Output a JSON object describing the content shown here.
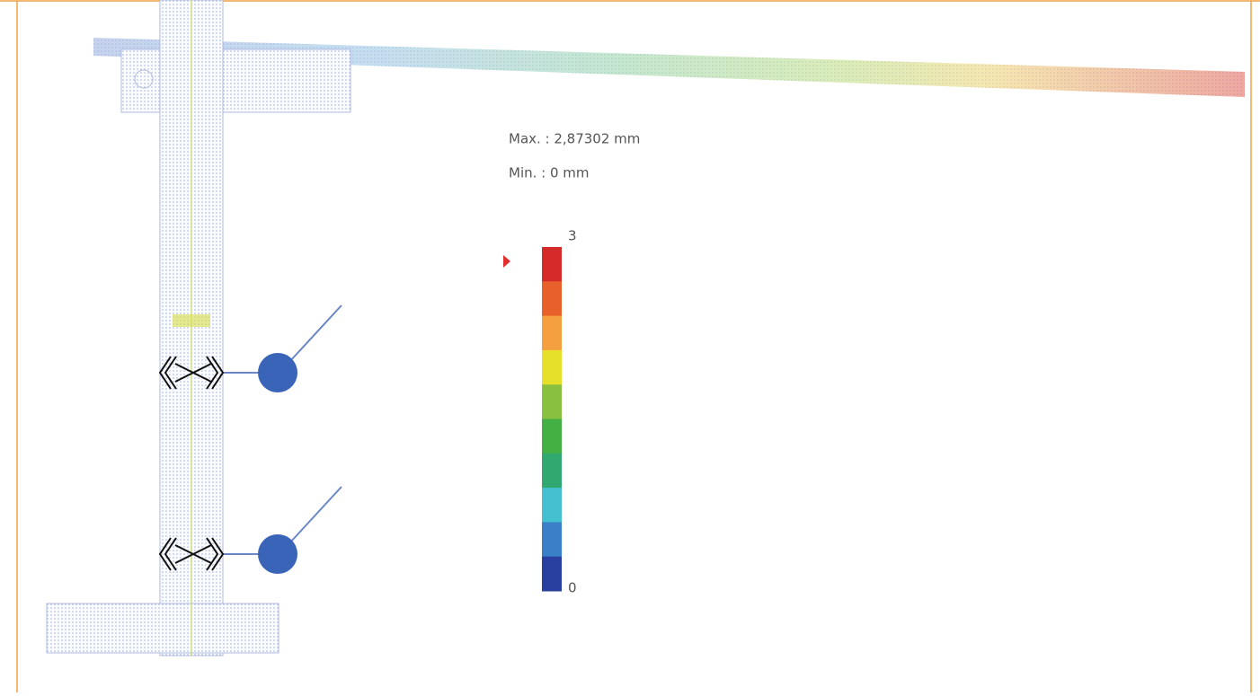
{
  "result": {
    "max_label": "Max. : 2,87302 mm",
    "min_label": "Min.  : 0 mm"
  },
  "legend": {
    "top_label": "3",
    "bottom_label": "0",
    "colors": [
      "#d42a2a",
      "#e8602a",
      "#f5a040",
      "#e6e02a",
      "#8ac040",
      "#44b044",
      "#30a870",
      "#44c0d0",
      "#3a80c8",
      "#2a40a0"
    ]
  }
}
